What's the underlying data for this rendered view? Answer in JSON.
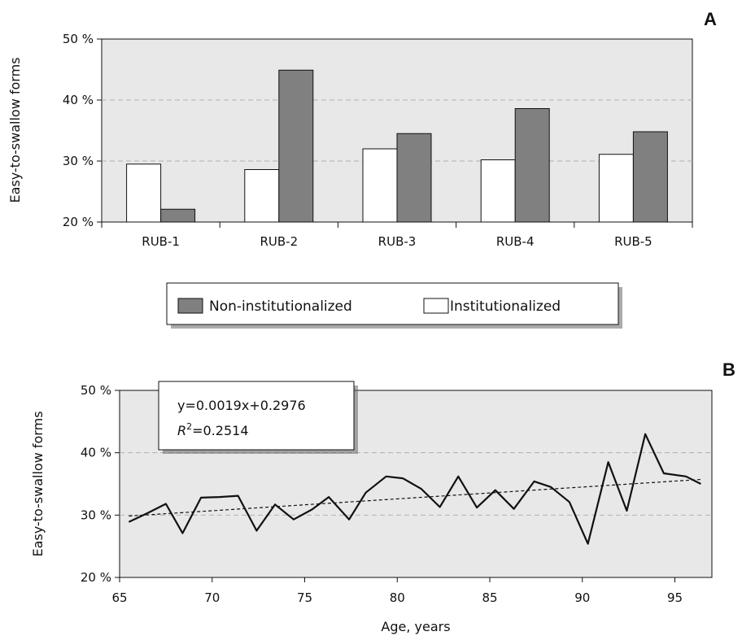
{
  "chart_data": [
    {
      "panel": "A",
      "type": "bar",
      "ylabel": "Easy-to-swallow forms",
      "xlabel": "",
      "ylim": [
        0.2,
        0.5
      ],
      "yticks": [
        "20 %",
        "30 %",
        "40 %",
        "50 %"
      ],
      "ytick_values": [
        0.2,
        0.3,
        0.4,
        0.5
      ],
      "grid": "horizontal dashed",
      "categories": [
        "RUB-1",
        "RUB-2",
        "RUB-3",
        "RUB-4",
        "RUB-5"
      ],
      "series": [
        {
          "name": "Institutionalized",
          "color": "#ffffff",
          "values": [
            0.295,
            0.286,
            0.32,
            0.302,
            0.311
          ]
        },
        {
          "name": "Non-institutionalized",
          "color": "#808080",
          "values": [
            0.221,
            0.449,
            0.345,
            0.386,
            0.348
          ]
        }
      ],
      "legend": {
        "placement": "below",
        "entries": [
          {
            "label": "Non-institutionalized",
            "color": "#808080"
          },
          {
            "label": "Institutionalized",
            "color": "#ffffff"
          }
        ]
      }
    },
    {
      "panel": "B",
      "type": "line",
      "ylabel": "Easy-to-swallow forms",
      "xlabel": "Age, years",
      "xlim": [
        65,
        97
      ],
      "ylim": [
        0.2,
        0.5
      ],
      "xticks": [
        "65",
        "70",
        "75",
        "80",
        "85",
        "90",
        "95"
      ],
      "xtick_values": [
        65,
        70,
        75,
        80,
        85,
        90,
        95
      ],
      "yticks": [
        "20 %",
        "30 %",
        "40 %",
        "50 %"
      ],
      "ytick_values": [
        0.2,
        0.3,
        0.4,
        0.5
      ],
      "grid": "horizontal dashed",
      "series": [
        {
          "x": [
            65.5,
            66.5,
            67.5,
            68.4,
            69.4,
            70.4,
            71.4,
            72.4,
            73.4,
            74.4,
            75.4,
            76.3,
            77.4,
            78.3,
            79.4,
            80.3,
            81.3,
            82.3,
            83.3,
            84.3,
            85.3,
            86.3,
            87.4,
            88.3,
            89.3,
            90.3,
            91.4,
            92.4,
            93.4,
            94.4,
            95.6,
            96.4
          ],
          "y": [
            0.289,
            0.303,
            0.318,
            0.271,
            0.328,
            0.329,
            0.331,
            0.275,
            0.317,
            0.293,
            0.309,
            0.329,
            0.293,
            0.336,
            0.362,
            0.359,
            0.342,
            0.313,
            0.362,
            0.312,
            0.34,
            0.31,
            0.354,
            0.345,
            0.321,
            0.254,
            0.385,
            0.307,
            0.43,
            0.367,
            0.362,
            0.35
          ]
        }
      ],
      "trendline": {
        "slope": 0.0019,
        "intercept": 0.174,
        "from": 65.5,
        "to": 96.4
      },
      "annotation": {
        "line1": "y=0.0019x+0.2976",
        "r2_prefix": "R",
        "r2_sup": "2",
        "r2_value": "=0.2514"
      }
    }
  ]
}
